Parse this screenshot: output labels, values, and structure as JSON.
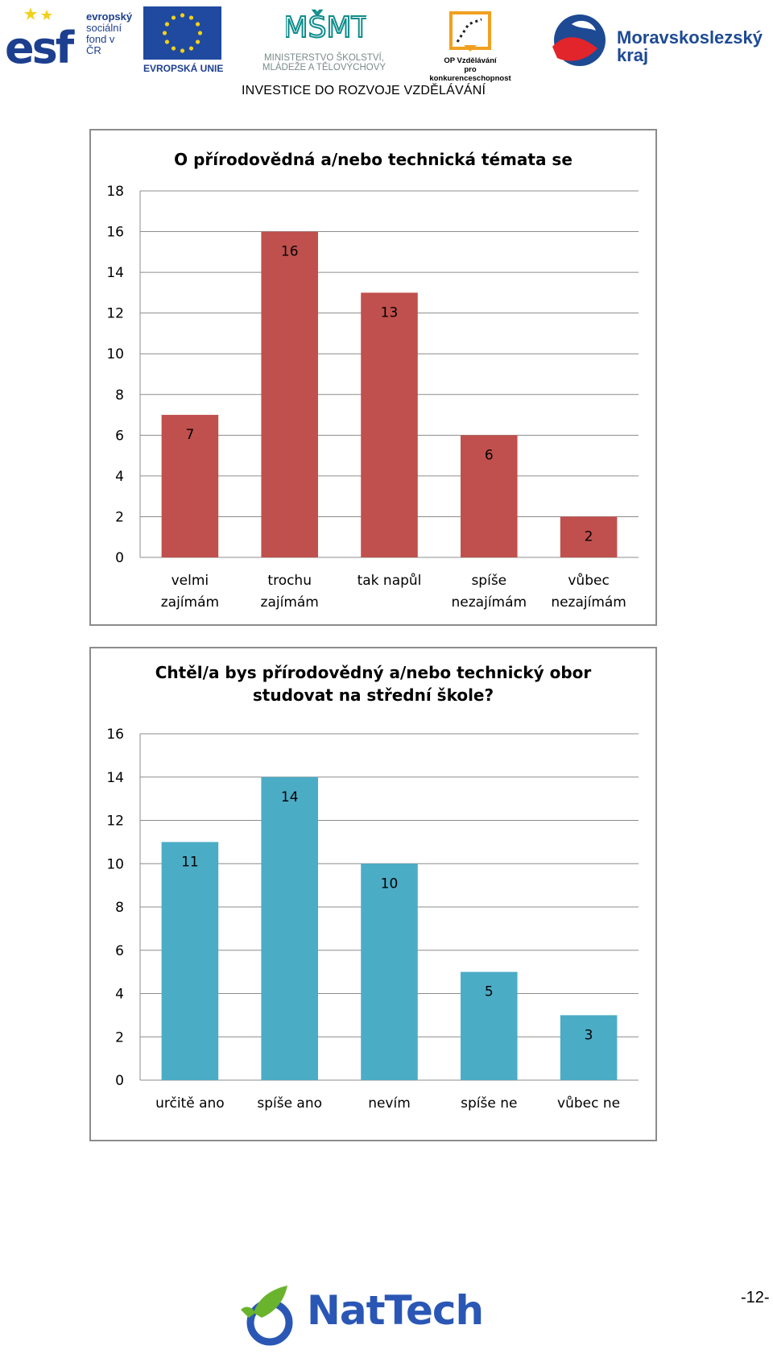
{
  "header": {
    "esf": {
      "letters": "esf",
      "lines": [
        "evropský",
        "sociální",
        "fond v ČR"
      ]
    },
    "eu": {
      "caption": "EVROPSKÁ UNIE"
    },
    "msmt": {
      "mark": "MŠMT",
      "lines": [
        "MINISTERSTVO ŠKOLSTVÍ,",
        "MLÁDEŽE A TĚLOVÝCHOVY"
      ]
    },
    "op": {
      "lines": [
        "OP Vzdělávání",
        "pro konkurenceschopnost"
      ]
    },
    "msk": {
      "lines": [
        "Moravskoslezský",
        "kraj"
      ]
    },
    "investice": "INVESTICE DO ROZVOJE VZDĚLÁVÁNÍ"
  },
  "chart_data": [
    {
      "type": "bar",
      "title": "O přírodovědná a/nebo technická témata se",
      "categories": [
        [
          "velmi",
          "zajímám"
        ],
        [
          "trochu",
          "zajímám"
        ],
        [
          "tak napůl"
        ],
        [
          "spíše",
          "nezajímám"
        ],
        [
          "vůbec",
          "nezajímám"
        ]
      ],
      "values": [
        7,
        16,
        13,
        6,
        2
      ],
      "ylim": [
        0,
        18
      ],
      "yticks": [
        0,
        2,
        4,
        6,
        8,
        10,
        12,
        14,
        16,
        18
      ],
      "color": "#c0504d",
      "grid": true,
      "xlabel": "",
      "ylabel": ""
    },
    {
      "type": "bar",
      "title": "Chtěl/a bys přírodovědný a/nebo technický obor studovat na střední škole?",
      "title_lines": [
        "Chtěl/a bys přírodovědný a/nebo technický obor",
        "studovat na střední škole?"
      ],
      "categories": [
        [
          "určitě ano"
        ],
        [
          "spíše ano"
        ],
        [
          "nevím"
        ],
        [
          "spíše ne"
        ],
        [
          "vůbec ne"
        ]
      ],
      "values": [
        11,
        14,
        10,
        5,
        3
      ],
      "ylim": [
        0,
        16
      ],
      "yticks": [
        0,
        2,
        4,
        6,
        8,
        10,
        12,
        14,
        16
      ],
      "color": "#4bacc6",
      "grid": true,
      "xlabel": "",
      "ylabel": ""
    }
  ],
  "footer": {
    "brand": "NatTech",
    "page": "-12-"
  },
  "colors": {
    "chart1_bar": "#c0504d",
    "chart2_bar": "#4bacc6",
    "brand_blue": "#2a57b5",
    "brand_green": "#6ab42d"
  }
}
